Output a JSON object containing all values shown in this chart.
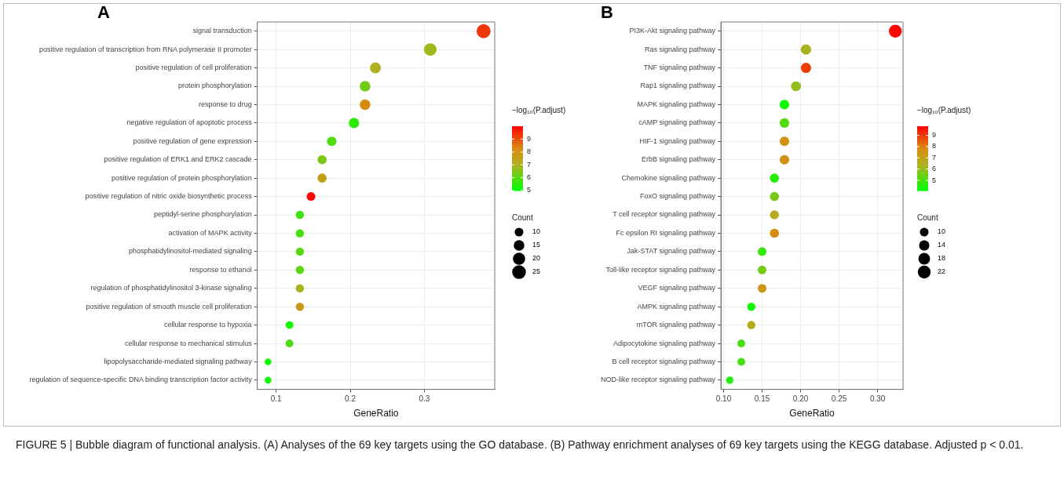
{
  "chart_data": [
    {
      "type": "bubble",
      "title": "A",
      "orientation": "horizontal",
      "xlabel": "GeneRatio",
      "clabel": "−log₁₀(P.adjust)",
      "legend_title": "Count",
      "grid": true,
      "marker": "circle",
      "categories": [
        "signal transduction",
        "positive regulation of transcription from RNA polymerase II promoter",
        "positive regulation of cell proliferation",
        "protein phosphorylation",
        "response to drug",
        "negative regulation of apoptotic process",
        "positive regulation of gene expression",
        "positive regulation of ERK1 and ERK2 cascade",
        "positive regulation of protein phosphorylation",
        "positive regulation of nitric oxide biosynthetic process",
        "peptidyl-serine phosphorylation",
        "activation of MAPK activity",
        "phosphatidylinositol-mediated signaling",
        "response to ethanol",
        "regulation of phosphatidylinositol 3-kinase signaling",
        "positive regulation of smooth muscle cell proliferation",
        "cellular response to hypoxia",
        "cellular response to mechanical stimulus",
        "lipopolysaccharide-mediated signaling pathway",
        "regulation of sequence-specific DNA binding transcription factor activity"
      ],
      "values": [
        0.38,
        0.308,
        0.234,
        0.22,
        0.22,
        0.205,
        0.175,
        0.162,
        0.162,
        0.147,
        0.132,
        0.132,
        0.132,
        0.132,
        0.132,
        0.132,
        0.118,
        0.118,
        0.089,
        0.089
      ],
      "sizes": [
        26,
        21,
        16,
        15,
        15,
        14,
        12,
        11,
        11,
        10,
        9,
        9,
        9,
        9,
        9,
        9,
        8,
        8,
        6,
        6
      ],
      "size_legend": [
        10,
        15,
        20,
        25
      ],
      "cvalues": [
        9.3,
        6.8,
        7.0,
        6.3,
        8.2,
        5.5,
        5.9,
        6.4,
        7.6,
        9.9,
        5.7,
        5.8,
        6.0,
        6.0,
        6.9,
        7.8,
        5.2,
        5.9,
        5.1,
        5.2
      ],
      "clim": [
        5,
        10
      ],
      "cticks": [
        5,
        6,
        7,
        8,
        9
      ],
      "xlim": [
        0.0745,
        0.395
      ],
      "xticks": [
        {
          "value": 0.1,
          "label": "0.1"
        },
        {
          "value": 0.2,
          "label": "0.2"
        },
        {
          "value": 0.3,
          "label": "0.3"
        }
      ],
      "annotations": [
        "FIGURE 5 | Bubble diagram of functional analysis. (A) Analyses of the 69 key targets using the GO database. (B) Pathway enrichment analyses of 69 key targets using the KEGG database. Adjusted p < 0.01."
      ]
    },
    {
      "type": "bubble",
      "title": "B",
      "orientation": "horizontal",
      "xlabel": "GeneRatio",
      "clabel": "−log₁₀(P.adjust)",
      "legend_title": "Count",
      "grid": true,
      "marker": "circle",
      "categories": [
        "PI3K-Akt signaling pathway",
        "Ras signaling pathway",
        "TNF signaling pathway",
        "Rap1 signaling pathway",
        "MAPK signaling pathway",
        "cAMP signaling pathway",
        "HIF-1 signaling pathway",
        "ErbB signaling pathway",
        "Chemokine signaling pathway",
        "FoxO signaling pathway",
        "T cell receptor signaling pathway",
        "Fc epsilon RI signaling pathway",
        "Jak-STAT signaling pathway",
        "Toll-like receptor signaling pathway",
        "VEGF signaling pathway",
        "AMPK signaling pathway",
        "mTOR signaling pathway",
        "Adipocytokine signaling pathway",
        "B cell receptor signaling pathway",
        "NOD-like receptor signaling pathway"
      ],
      "values": [
        0.323,
        0.207,
        0.207,
        0.194,
        0.179,
        0.179,
        0.179,
        0.179,
        0.166,
        0.166,
        0.166,
        0.166,
        0.15,
        0.15,
        0.15,
        0.136,
        0.136,
        0.123,
        0.123,
        0.108
      ],
      "sizes": [
        22,
        14,
        14,
        13,
        12,
        12,
        12,
        12,
        11,
        11,
        11,
        11,
        10,
        10,
        10,
        9,
        9,
        8,
        8,
        7
      ],
      "size_legend": [
        10,
        14,
        18,
        22
      ],
      "cvalues": [
        9.7,
        6.3,
        8.9,
        6.0,
        4.3,
        5.2,
        7.6,
        7.6,
        4.6,
        5.7,
        6.6,
        7.8,
        4.8,
        5.6,
        7.3,
        4.3,
        6.6,
        5.0,
        5.0,
        4.5
      ],
      "clim": [
        4.1,
        9.8
      ],
      "cticks": [
        5,
        6,
        7,
        8,
        9
      ],
      "xlim": [
        0.0965,
        0.333
      ],
      "xticks": [
        {
          "value": 0.1,
          "label": "0.10"
        },
        {
          "value": 0.15,
          "label": "0.15"
        },
        {
          "value": 0.2,
          "label": "0.20"
        },
        {
          "value": 0.25,
          "label": "0.25"
        },
        {
          "value": 0.3,
          "label": "0.30"
        }
      ]
    }
  ]
}
